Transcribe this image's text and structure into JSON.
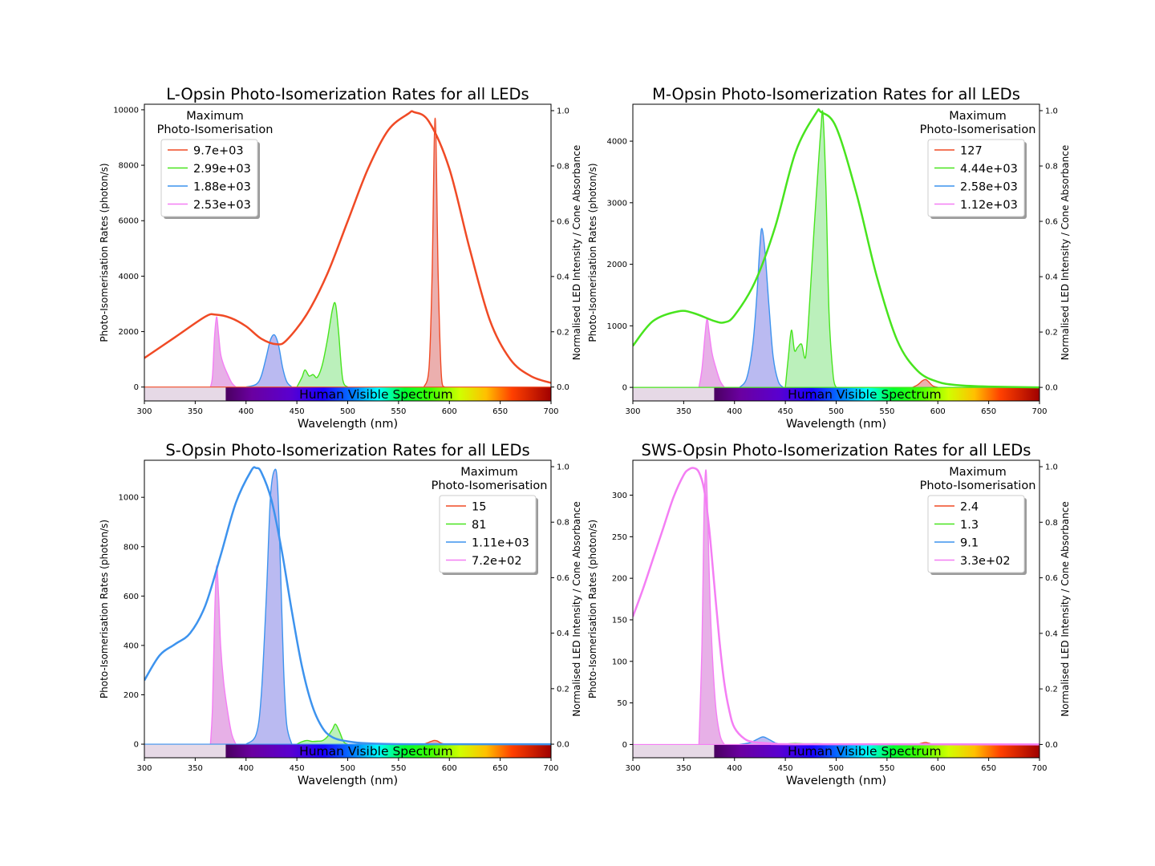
{
  "colors": {
    "led_red": "#f04a25",
    "led_green": "#48e41e",
    "led_blue": "#3d93ee",
    "led_pink": "#f47ef4",
    "fill_red": "#e9a6a5",
    "fill_green": "#b4eeb4",
    "fill_blue": "#b3b3f0",
    "fill_pink": "#e4a7e4",
    "uv_box": "#e6d9e6"
  },
  "chart_data": [
    {
      "type": "line",
      "title": "L-Opsin Photo-Isomerization Rates for all LEDs",
      "xlabel": "Wavelength (nm)",
      "ylabel": "Photo-Isomerisation Rates (photon/s)",
      "y2label": "Normalised LED Intensity / Cone Absorbance",
      "xlim": [
        300,
        700
      ],
      "ylim": [
        -500,
        10200
      ],
      "x_ticks": [
        300,
        350,
        400,
        450,
        500,
        550,
        600,
        650,
        700
      ],
      "y_ticks": [
        0,
        2000,
        4000,
        6000,
        8000,
        10000
      ],
      "y2_ticks": [
        "0.0",
        "0.2",
        "0.4",
        "0.6",
        "0.8",
        "1.0"
      ],
      "spectrum_label": "Human Visible Spectrum",
      "legend_title": "Maximum\nPhoto-Isomerisation",
      "legend_placement": "upper-left",
      "series": [
        {
          "name": "9.7e+03",
          "color": "led_red",
          "x": [
            575,
            580,
            583,
            586,
            589,
            592,
            595
          ],
          "y": [
            0,
            700,
            4000,
            9700,
            4000,
            500,
            0
          ]
        },
        {
          "name": "2.99e+03",
          "color": "led_green",
          "x": [
            450,
            455,
            458,
            462,
            466,
            470,
            475,
            480,
            485,
            488,
            491,
            495,
            500
          ],
          "y": [
            0,
            350,
            620,
            400,
            450,
            350,
            800,
            1700,
            2800,
            2990,
            2000,
            300,
            0
          ]
        },
        {
          "name": "1.88e+03",
          "color": "led_blue",
          "x": [
            400,
            410,
            415,
            420,
            424,
            428,
            432,
            436,
            440,
            445
          ],
          "y": [
            0,
            100,
            400,
            1100,
            1700,
            1880,
            1500,
            700,
            200,
            0
          ]
        },
        {
          "name": "2.53e+03",
          "color": "led_pink",
          "x": [
            365,
            367,
            369,
            371,
            373,
            375,
            378,
            382,
            386,
            390
          ],
          "y": [
            0,
            400,
            1800,
            2530,
            1900,
            1200,
            800,
            450,
            150,
            0
          ]
        }
      ],
      "absorbance": {
        "color": "led_red",
        "x": [
          300,
          330,
          360,
          370,
          385,
          400,
          415,
          430,
          440,
          460,
          480,
          500,
          520,
          540,
          560,
          565,
          580,
          600,
          620,
          640,
          660,
          680,
          700
        ],
        "y": [
          0.105,
          0.18,
          0.255,
          0.262,
          0.25,
          0.22,
          0.175,
          0.155,
          0.17,
          0.265,
          0.41,
          0.6,
          0.79,
          0.93,
          0.99,
          0.995,
          0.96,
          0.79,
          0.5,
          0.24,
          0.1,
          0.04,
          0.015
        ]
      }
    },
    {
      "type": "line",
      "title": "M-Opsin Photo-Isomerization Rates for all LEDs",
      "xlabel": "Wavelength (nm)",
      "ylabel": "Photo-Isomerisation Rates (photon/s)",
      "y2label": "Normalised LED Intensity / Cone Absorbance",
      "xlim": [
        300,
        700
      ],
      "ylim": [
        -220,
        4600
      ],
      "x_ticks": [
        300,
        350,
        400,
        450,
        500,
        550,
        600,
        650,
        700
      ],
      "y_ticks": [
        0,
        1000,
        2000,
        3000,
        4000
      ],
      "y2_ticks": [
        "0.0",
        "0.2",
        "0.4",
        "0.6",
        "0.8",
        "1.0"
      ],
      "spectrum_label": "Human Visible Spectrum",
      "legend_title": "Maximum\nPhoto-Isomerisation",
      "legend_placement": "upper-right",
      "series": [
        {
          "name": "127",
          "color": "led_red",
          "x": [
            575,
            580,
            585,
            588,
            591,
            595,
            600
          ],
          "y": [
            0,
            40,
            110,
            127,
            90,
            25,
            0
          ]
        },
        {
          "name": "4.44e+03",
          "color": "led_green",
          "x": [
            450,
            453,
            456,
            459,
            462,
            466,
            470,
            474,
            478,
            482,
            485,
            487,
            490,
            493,
            497,
            500
          ],
          "y": [
            0,
            500,
            930,
            600,
            650,
            700,
            500,
            1400,
            2500,
            3500,
            4200,
            4440,
            3200,
            1200,
            200,
            0
          ]
        },
        {
          "name": "2.58e+03",
          "color": "led_blue",
          "x": [
            405,
            412,
            418,
            422,
            425,
            427,
            430,
            434,
            438,
            443,
            448
          ],
          "y": [
            0,
            150,
            700,
            1500,
            2300,
            2580,
            2200,
            1300,
            500,
            100,
            0
          ]
        },
        {
          "name": "1.12e+03",
          "color": "led_pink",
          "x": [
            365,
            368,
            371,
            373,
            375,
            378,
            382,
            386,
            390
          ],
          "y": [
            0,
            300,
            850,
            1120,
            900,
            550,
            300,
            100,
            0
          ]
        }
      ],
      "absorbance": {
        "color": "led_green",
        "x": [
          300,
          320,
          345,
          360,
          380,
          390,
          400,
          420,
          440,
          460,
          480,
          485,
          500,
          520,
          540,
          560,
          580,
          600,
          620,
          650,
          700
        ],
        "y": [
          0.15,
          0.24,
          0.275,
          0.268,
          0.24,
          0.235,
          0.26,
          0.38,
          0.58,
          0.85,
          0.99,
          0.995,
          0.94,
          0.7,
          0.4,
          0.17,
          0.06,
          0.02,
          0.008,
          0.003,
          0.0
        ]
      }
    },
    {
      "type": "line",
      "title": "S-Opsin Photo-Isomerization Rates for all LEDs",
      "xlabel": "Wavelength (nm)",
      "ylabel": "Photo-Isomerisation Rates (photon/s)",
      "y2label": "Normalised LED Intensity / Cone Absorbance",
      "xlim": [
        300,
        700
      ],
      "ylim": [
        -55,
        1150
      ],
      "x_ticks": [
        300,
        350,
        400,
        450,
        500,
        550,
        600,
        650,
        700
      ],
      "y_ticks": [
        0,
        200,
        400,
        600,
        800,
        1000
      ],
      "y2_ticks": [
        "0.0",
        "0.2",
        "0.4",
        "0.6",
        "0.8",
        "1.0"
      ],
      "spectrum_label": "Human Visible Spectrum",
      "legend_title": "Maximum\nPhoto-Isomerisation",
      "legend_placement": "upper-right",
      "series": [
        {
          "name": "15",
          "color": "led_red",
          "x": [
            575,
            580,
            585,
            588,
            591,
            595
          ],
          "y": [
            0,
            8,
            15,
            13,
            6,
            0
          ]
        },
        {
          "name": "81",
          "color": "led_green",
          "x": [
            450,
            455,
            460,
            465,
            470,
            475,
            480,
            485,
            488,
            492,
            496,
            500
          ],
          "y": [
            0,
            10,
            15,
            11,
            12,
            14,
            30,
            60,
            81,
            50,
            10,
            0
          ]
        },
        {
          "name": "1.11e+03",
          "color": "led_blue",
          "x": [
            400,
            410,
            415,
            420,
            424,
            428,
            431,
            434,
            437,
            440,
            445
          ],
          "y": [
            0,
            40,
            200,
            600,
            1000,
            1110,
            1050,
            700,
            300,
            80,
            0
          ]
        },
        {
          "name": "7.2e+02",
          "color": "led_pink",
          "x": [
            365,
            367,
            369,
            371,
            373,
            375,
            378,
            382,
            386,
            390
          ],
          "y": [
            0,
            150,
            500,
            720,
            600,
            400,
            250,
            130,
            40,
            0
          ]
        }
      ],
      "absorbance": {
        "color": "led_blue",
        "x": [
          300,
          315,
          330,
          345,
          360,
          375,
          390,
          405,
          410,
          415,
          425,
          435,
          445,
          455,
          465,
          475,
          485,
          500,
          520,
          560,
          700
        ],
        "y": [
          0.23,
          0.32,
          0.36,
          0.4,
          0.5,
          0.68,
          0.87,
          0.985,
          0.995,
          0.98,
          0.88,
          0.7,
          0.48,
          0.28,
          0.14,
          0.06,
          0.025,
          0.01,
          0.003,
          0.0,
          0.0
        ]
      }
    },
    {
      "type": "line",
      "title": "SWS-Opsin Photo-Isomerization Rates for all LEDs",
      "xlabel": "Wavelength (nm)",
      "ylabel": "Photo-Isomerisation Rates (photon/s)",
      "y2label": "Normalised LED Intensity / Cone Absorbance",
      "xlim": [
        300,
        700
      ],
      "ylim": [
        -16,
        342
      ],
      "x_ticks": [
        300,
        350,
        400,
        450,
        500,
        550,
        600,
        650,
        700
      ],
      "y_ticks": [
        0,
        50,
        100,
        150,
        200,
        250,
        300
      ],
      "y2_ticks": [
        "0.0",
        "0.2",
        "0.4",
        "0.6",
        "0.8",
        "1.0"
      ],
      "spectrum_label": "Human Visible Spectrum",
      "legend_title": "Maximum\nPhoto-Isomerisation",
      "legend_placement": "upper-right",
      "series": [
        {
          "name": "2.4",
          "color": "led_red",
          "x": [
            580,
            585,
            588,
            591,
            595
          ],
          "y": [
            0,
            1.8,
            2.4,
            1.5,
            0
          ]
        },
        {
          "name": "1.3",
          "color": "led_green",
          "x": [
            450,
            455,
            460,
            470,
            480,
            490,
            500
          ],
          "y": [
            0,
            1.0,
            1.3,
            0.8,
            0.9,
            0.6,
            0
          ]
        },
        {
          "name": "9.1",
          "color": "led_blue",
          "x": [
            405,
            415,
            422,
            428,
            434,
            440,
            445
          ],
          "y": [
            0,
            2,
            6,
            9.1,
            6,
            2,
            0
          ]
        },
        {
          "name": "3.3e+02",
          "color": "led_pink",
          "x": [
            365,
            368,
            370,
            372,
            374,
            376,
            379,
            382,
            386,
            390
          ],
          "y": [
            0,
            120,
            280,
            330,
            260,
            170,
            90,
            40,
            10,
            0
          ]
        }
      ],
      "absorbance": {
        "color": "led_pink",
        "x": [
          300,
          310,
          320,
          330,
          340,
          350,
          355,
          360,
          365,
          370,
          375,
          380,
          385,
          390,
          395,
          400,
          410,
          420,
          440,
          460,
          700
        ],
        "y": [
          0.46,
          0.56,
          0.67,
          0.78,
          0.89,
          0.97,
          0.99,
          0.995,
          0.98,
          0.92,
          0.78,
          0.58,
          0.38,
          0.22,
          0.12,
          0.06,
          0.02,
          0.008,
          0.003,
          0.001,
          0.0
        ]
      }
    }
  ]
}
